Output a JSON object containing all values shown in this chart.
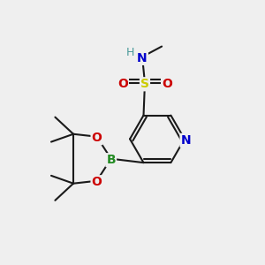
{
  "bg_color": "#efefef",
  "atom_colors": {
    "N_ring": "#0000cc",
    "N_amine": "#0000cc",
    "H": "#4a9a9a",
    "S": "#cccc00",
    "O": "#cc0000",
    "B": "#228b22"
  },
  "bond_color": "#1a1a1a",
  "bond_width": 1.5
}
